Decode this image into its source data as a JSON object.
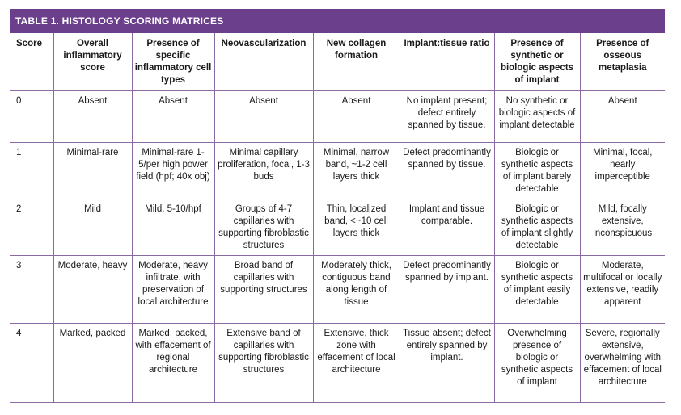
{
  "table": {
    "title": "TABLE 1. HISTOLOGY SCORING MATRICES",
    "headers": [
      "Score",
      "Overall inflammatory score",
      "Presence of specific inflammatory cell types",
      "Neovascularization",
      "New collagen formation",
      "Implant:tissue ratio",
      "Presence of synthetic or biologic aspects of implant",
      "Presence of osseous metaplasia"
    ],
    "rows": [
      [
        "0",
        "Absent",
        "Absent",
        "Absent",
        "Absent",
        "No implant present; defect entirely spanned by tissue.",
        "No synthetic or biologic aspects of implant detectable",
        "Absent"
      ],
      [
        "1",
        "Minimal-rare",
        "Minimal-rare 1-5/per high power field (hpf; 40x obj)",
        "Minimal capillary proliferation, focal, 1-3 buds",
        "Minimal, narrow band, ~1-2 cell layers thick",
        "Defect predominantly spanned by tissue.",
        "Biologic or synthetic aspects of implant barely detectable",
        "Minimal, focal, nearly imperceptible"
      ],
      [
        "2",
        "Mild",
        "Mild, 5-10/hpf",
        "Groups of 4-7 capillaries with supporting fibroblastic structures",
        "Thin, localized band, <~10 cell layers thick",
        "Implant and tissue comparable.",
        "Biologic or synthetic aspects of implant slightly detectable",
        "Mild, focally extensive, inconspicuous"
      ],
      [
        "3",
        "Moderate, heavy",
        "Moderate, heavy infiltrate, with preservation of local architecture",
        "Broad band of capillaries with supporting structures",
        "Moderately thick, contiguous band along length of tissue",
        "Defect predominantly spanned by implant.",
        "Biologic or synthetic aspects of implant easily detectable",
        "Moderate, multifocal or locally extensive, readily apparent"
      ],
      [
        "4",
        "Marked, packed",
        "Marked, packed, with effacement of regional architecture",
        "Extensive band of capillaries with supporting fibroblastic structures",
        "Extensive, thick zone with effacement of local architecture",
        "Tissue absent; defect entirely spanned by implant.",
        "Overwhelming presence of biologic or synthetic aspects of implant",
        "Severe, regionally extensive, overwhelming with effacement of local architecture"
      ]
    ]
  },
  "colors": {
    "title_bar": "#6b3f8c",
    "rule": "#8a6aa3"
  }
}
